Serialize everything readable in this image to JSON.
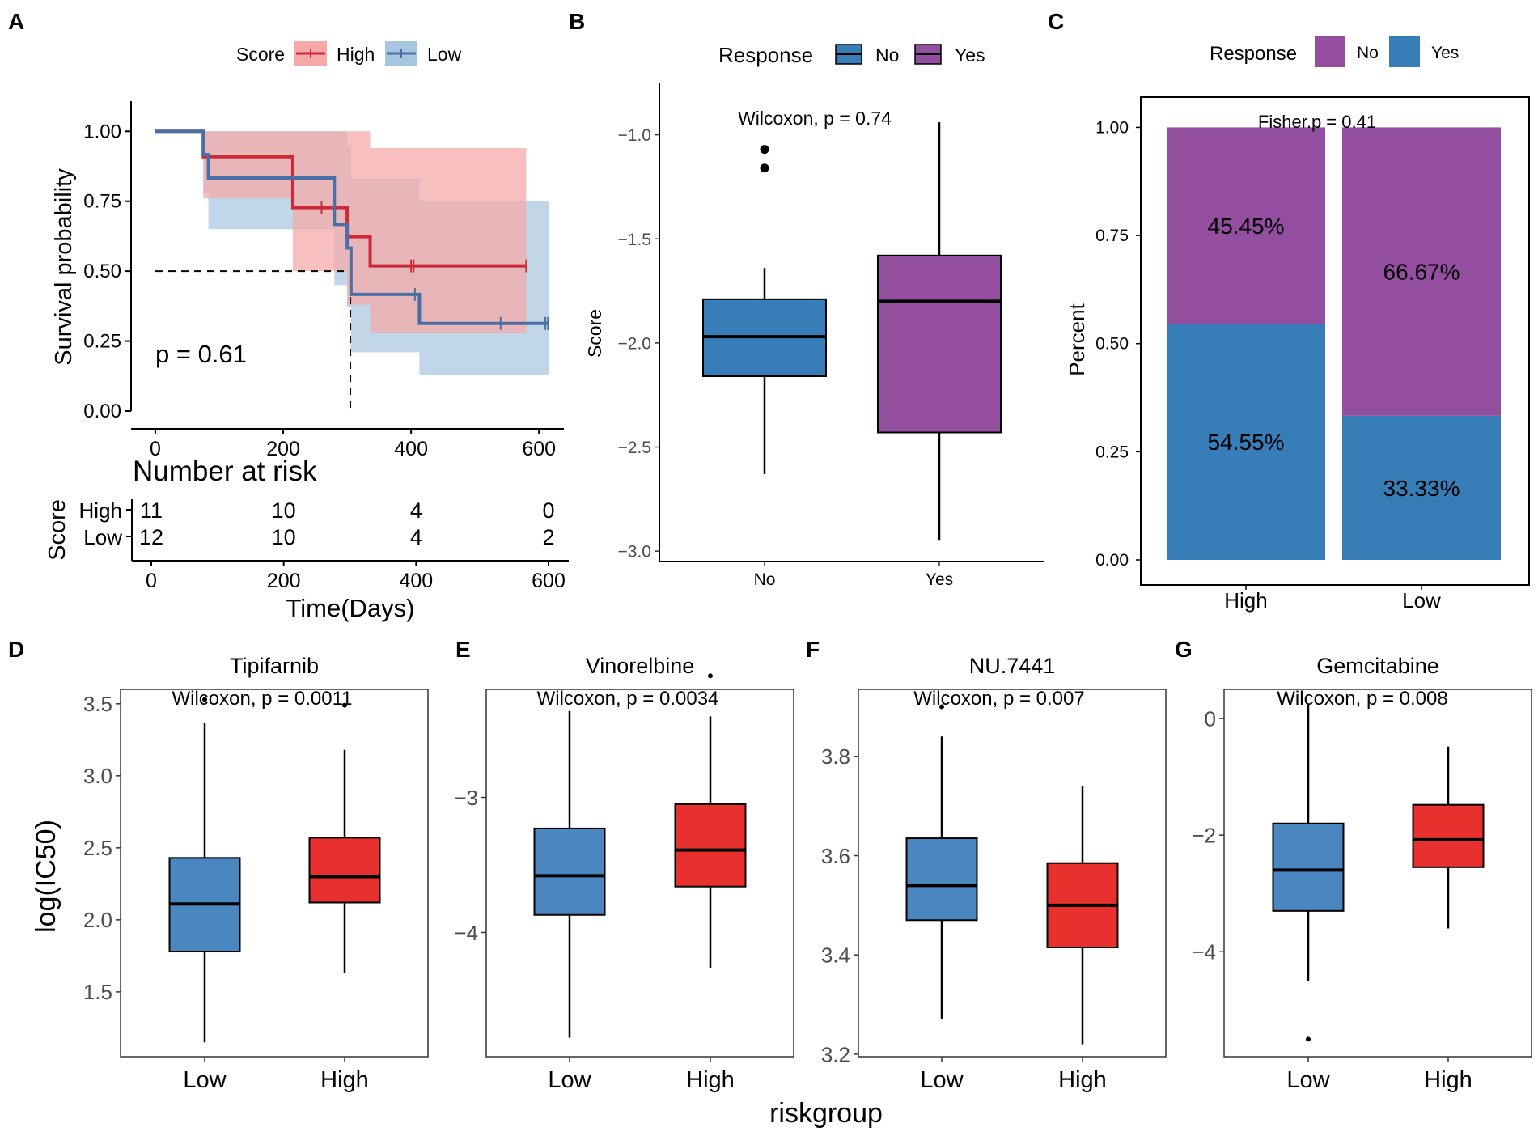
{
  "panel_labels": [
    "A",
    "B",
    "C",
    "D",
    "E",
    "F",
    "G"
  ],
  "colors": {
    "high_red": "#d62c2c",
    "low_blue": "#4e79a7",
    "km_high": "#cc2a36",
    "km_low": "#4a6fa5",
    "ci_high": "#f4a9a8",
    "ci_low": "#a7c4e0",
    "purple": "#944ea0",
    "steel_blue": "#377eb8",
    "box_blue": "#4a87c0",
    "box_red": "#e8302f"
  },
  "chart_data": [
    {
      "id": "A",
      "type": "line",
      "subtype": "kaplan-meier",
      "legend_title": "Score",
      "legend": [
        "High",
        "Low"
      ],
      "legend_position": "top",
      "xlabel": "",
      "ylabel": "Survival probability",
      "xlim": [
        0,
        620
      ],
      "ylim": [
        0,
        1.05
      ],
      "xticks": [
        0,
        200,
        400,
        600
      ],
      "yticks": [
        "0.00",
        "0.25",
        "0.50",
        "0.75",
        "1.00"
      ],
      "annotation": "p = 0.61",
      "median_line": {
        "y": 0.5,
        "x": 305
      },
      "series": [
        {
          "name": "High",
          "steps": [
            [
              0,
              1.0
            ],
            [
              75,
              0.909
            ],
            [
              215,
              0.727
            ],
            [
              300,
              0.623
            ],
            [
              336,
              0.519
            ],
            [
              580,
              0.519
            ]
          ],
          "censored": [
            [
              260,
              0.727
            ],
            [
              400,
              0.519
            ],
            [
              404,
              0.519
            ],
            [
              580,
              0.519
            ]
          ],
          "ci": [
            [
              0,
              1.0,
              1.0
            ],
            [
              75,
              0.76,
              1.0
            ],
            [
              215,
              0.5,
              1.0
            ],
            [
              300,
              0.38,
              1.0
            ],
            [
              336,
              0.28,
              0.94
            ],
            [
              580,
              0.28,
              0.94
            ]
          ]
        },
        {
          "name": "Low",
          "steps": [
            [
              0,
              1.0
            ],
            [
              75,
              0.917
            ],
            [
              83,
              0.833
            ],
            [
              280,
              0.667
            ],
            [
              300,
              0.583
            ],
            [
              306,
              0.417
            ],
            [
              413,
              0.313
            ],
            [
              615,
              0.313
            ]
          ],
          "censored": [
            [
              406,
              0.417
            ],
            [
              540,
              0.313
            ],
            [
              610,
              0.313
            ],
            [
              614,
              0.313
            ]
          ],
          "ci": [
            [
              0,
              1.0,
              1.0
            ],
            [
              75,
              0.78,
              1.0
            ],
            [
              83,
              0.65,
              1.0
            ],
            [
              280,
              0.45,
              1.0
            ],
            [
              300,
              0.37,
              0.95
            ],
            [
              306,
              0.21,
              0.83
            ],
            [
              413,
              0.13,
              0.75
            ],
            [
              615,
              0.13,
              0.75
            ]
          ]
        }
      ],
      "risk_table": {
        "title": "Number at risk",
        "ylabel": "Score",
        "xlabel": "Time(Days)",
        "times": [
          0,
          200,
          400,
          600
        ],
        "rows": [
          {
            "group": "High",
            "counts": [
              "11",
              "10",
              "4",
              "0"
            ]
          },
          {
            "group": "Low",
            "counts": [
              "12",
              "10",
              "4",
              "2"
            ]
          }
        ]
      }
    },
    {
      "id": "B",
      "type": "box",
      "legend_title": "Response",
      "legend": [
        "No",
        "Yes"
      ],
      "legend_position": "top",
      "xlabel": "",
      "ylabel": "Score",
      "ylim": [
        -3.05,
        -0.85
      ],
      "yticks": [
        "−3.0",
        "−2.5",
        "−2.0",
        "−1.5",
        "−1.0"
      ],
      "ytick_values": [
        -3.0,
        -2.5,
        -2.0,
        -1.5,
        -1.0
      ],
      "categories": [
        "No",
        "Yes"
      ],
      "annotation": "Wilcoxon, p = 0.74",
      "boxes": [
        {
          "min": -2.63,
          "q1": -2.16,
          "median": -1.97,
          "q3": -1.79,
          "max": -1.64,
          "outliers": [
            -1.07,
            -1.16
          ]
        },
        {
          "min": -2.95,
          "q1": -2.43,
          "median": -1.8,
          "q3": -1.58,
          "max": -0.94,
          "outliers": []
        }
      ]
    },
    {
      "id": "C",
      "type": "bar",
      "subtype": "stacked-percent",
      "legend_title": "Response",
      "legend": [
        "No",
        "Yes"
      ],
      "legend_position": "top",
      "xlabel": "",
      "ylabel": "Percent",
      "ylim": [
        0,
        1.07
      ],
      "yticks": [
        "0.00",
        "0.25",
        "0.50",
        "0.75",
        "1.00"
      ],
      "categories": [
        "High",
        "Low"
      ],
      "annotation": "Fisher.p = 0.41",
      "series": [
        {
          "name": "Yes",
          "values": [
            0.5455,
            0.3333
          ],
          "labels": [
            "54.55%",
            "33.33%"
          ]
        },
        {
          "name": "No",
          "values": [
            0.4545,
            0.6667
          ],
          "labels": [
            "45.45%",
            "66.67%"
          ]
        }
      ]
    },
    {
      "id": "D",
      "type": "box",
      "title": "Tipifarnib",
      "ylabel": "log(IC50)",
      "ylim": [
        1.05,
        3.6
      ],
      "yticks": [
        "1.5",
        "2.0",
        "2.5",
        "3.0",
        "3.5"
      ],
      "ytick_values": [
        1.5,
        2.0,
        2.5,
        3.0,
        3.5
      ],
      "categories": [
        "Low",
        "High"
      ],
      "annotation": "Wilcoxon, p = 0.0011",
      "boxes": [
        {
          "min": 1.15,
          "q1": 1.78,
          "median": 2.11,
          "q3": 2.43,
          "max": 3.37,
          "outliers": [
            3.53
          ]
        },
        {
          "min": 1.63,
          "q1": 2.12,
          "median": 2.3,
          "q3": 2.57,
          "max": 3.18,
          "outliers": [
            3.49
          ]
        }
      ]
    },
    {
      "id": "E",
      "type": "box",
      "title": "Vinorelbine",
      "ylim": [
        -4.92,
        -2.2
      ],
      "yticks": [
        "−4",
        "−3"
      ],
      "ytick_values": [
        -4,
        -3
      ],
      "categories": [
        "Low",
        "High"
      ],
      "annotation": "Wilcoxon, p = 0.0034",
      "boxes": [
        {
          "min": -4.78,
          "q1": -3.87,
          "median": -3.58,
          "q3": -3.23,
          "max": -2.36,
          "outliers": []
        },
        {
          "min": -4.26,
          "q1": -3.66,
          "median": -3.39,
          "q3": -3.05,
          "max": -2.4,
          "outliers": [
            -2.1
          ]
        }
      ]
    },
    {
      "id": "F",
      "type": "box",
      "title": "NU.7441",
      "ylim": [
        3.195,
        3.935
      ],
      "yticks": [
        "3.2",
        "3.4",
        "3.6",
        "3.8"
      ],
      "ytick_values": [
        3.2,
        3.4,
        3.6,
        3.8
      ],
      "categories": [
        "Low",
        "High"
      ],
      "annotation": "Wilcoxon, p = 0.007",
      "boxes": [
        {
          "min": 3.27,
          "q1": 3.47,
          "median": 3.54,
          "q3": 3.635,
          "max": 3.84,
          "outliers": [
            3.9
          ]
        },
        {
          "min": 3.22,
          "q1": 3.415,
          "median": 3.5,
          "q3": 3.585,
          "max": 3.74,
          "outliers": []
        }
      ]
    },
    {
      "id": "G",
      "type": "box",
      "title": "Gemcitabine",
      "ylim": [
        -5.8,
        0.5
      ],
      "yticks": [
        "−4",
        "−2",
        "0"
      ],
      "ytick_values": [
        -4,
        -2,
        0
      ],
      "categories": [
        "Low",
        "High"
      ],
      "annotation": "Wilcoxon, p = 0.008",
      "boxes": [
        {
          "min": -4.5,
          "q1": -3.3,
          "median": -2.6,
          "q3": -1.8,
          "max": 0.25,
          "outliers": [
            -5.5
          ]
        },
        {
          "min": -3.6,
          "q1": -2.55,
          "median": -2.08,
          "q3": -1.48,
          "max": -0.48,
          "outliers": []
        }
      ]
    }
  ],
  "shared": {
    "bottom_xlabel": "riskgroup",
    "bottom_ylabel": "log(IC50)"
  }
}
